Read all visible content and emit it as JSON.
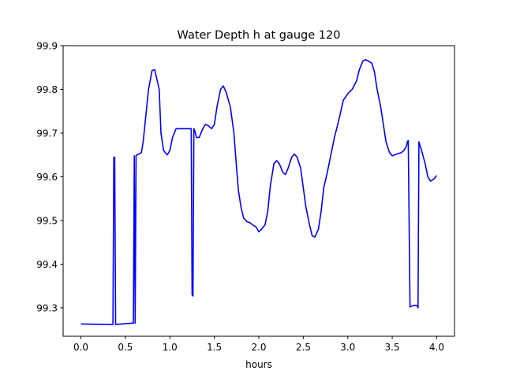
{
  "chart_data": {
    "type": "line",
    "title": "Water Depth h at gauge 120",
    "xlabel": "hours",
    "ylabel": "",
    "xlim": [
      -0.2,
      4.2
    ],
    "ylim": [
      99.235,
      99.9
    ],
    "xticks": [
      0.0,
      0.5,
      1.0,
      1.5,
      2.0,
      2.5,
      3.0,
      3.5,
      4.0
    ],
    "xtick_labels": [
      "0.0",
      "0.5",
      "1.0",
      "1.5",
      "2.0",
      "2.5",
      "3.0",
      "3.5",
      "4.0"
    ],
    "yticks": [
      99.3,
      99.4,
      99.5,
      99.6,
      99.7,
      99.8,
      99.9
    ],
    "ytick_labels": [
      "99.3",
      "99.4",
      "99.5",
      "99.6",
      "99.7",
      "99.8",
      "99.9"
    ],
    "grid": false,
    "series": [
      {
        "color": "#0000ff",
        "x": [
          0.0,
          0.34,
          0.36,
          0.37,
          0.38,
          0.39,
          0.58,
          0.59,
          0.6,
          0.61,
          0.62,
          0.63,
          0.68,
          0.7,
          0.73,
          0.76,
          0.8,
          0.83,
          0.88,
          0.9,
          0.93,
          0.97,
          1.0,
          1.03,
          1.07,
          1.1,
          1.13,
          1.17,
          1.2,
          1.24,
          1.25,
          1.26,
          1.27,
          1.28,
          1.3,
          1.33,
          1.37,
          1.4,
          1.43,
          1.47,
          1.5,
          1.53,
          1.57,
          1.6,
          1.63,
          1.68,
          1.72,
          1.75,
          1.77,
          1.8,
          1.83,
          1.87,
          1.9,
          1.93,
          1.97,
          2.0,
          2.03,
          2.07,
          2.1,
          2.13,
          2.17,
          2.2,
          2.23,
          2.27,
          2.3,
          2.33,
          2.37,
          2.4,
          2.43,
          2.47,
          2.5,
          2.53,
          2.57,
          2.6,
          2.63,
          2.67,
          2.7,
          2.73,
          2.77,
          2.8,
          2.85,
          2.9,
          2.95,
          3.0,
          3.05,
          3.1,
          3.13,
          3.17,
          3.2,
          3.23,
          3.27,
          3.3,
          3.33,
          3.37,
          3.4,
          3.43,
          3.47,
          3.5,
          3.55,
          3.6,
          3.63,
          3.66,
          3.67,
          3.68,
          3.7,
          3.73,
          3.76,
          3.78,
          3.79,
          3.8,
          3.83,
          3.87,
          3.9,
          3.93,
          3.97,
          4.0
        ],
        "y": [
          99.263,
          99.262,
          99.262,
          99.645,
          99.645,
          99.262,
          99.265,
          99.265,
          99.648,
          99.265,
          99.648,
          99.65,
          99.655,
          99.68,
          99.74,
          99.8,
          99.843,
          99.845,
          99.8,
          99.7,
          99.66,
          99.65,
          99.66,
          99.69,
          99.71,
          99.71,
          99.71,
          99.71,
          99.71,
          99.71,
          99.33,
          99.327,
          99.71,
          99.705,
          99.69,
          99.69,
          99.71,
          99.72,
          99.717,
          99.71,
          99.72,
          99.76,
          99.8,
          99.808,
          99.795,
          99.76,
          99.7,
          99.62,
          99.57,
          99.53,
          99.505,
          99.497,
          99.495,
          99.49,
          99.485,
          99.474,
          99.48,
          99.49,
          99.52,
          99.58,
          99.63,
          99.637,
          99.63,
          99.61,
          99.605,
          99.62,
          99.645,
          99.652,
          99.645,
          99.62,
          99.575,
          99.53,
          99.49,
          99.465,
          99.462,
          99.48,
          99.52,
          99.575,
          99.61,
          99.64,
          99.69,
          99.73,
          99.775,
          99.79,
          99.8,
          99.82,
          99.845,
          99.865,
          99.868,
          99.865,
          99.86,
          99.84,
          99.8,
          99.76,
          99.72,
          99.68,
          99.655,
          99.648,
          99.652,
          99.655,
          99.66,
          99.67,
          99.68,
          99.683,
          99.302,
          99.305,
          99.306,
          99.305,
          99.3,
          99.68,
          99.66,
          99.63,
          99.6,
          99.59,
          99.595,
          99.603
        ]
      }
    ]
  }
}
